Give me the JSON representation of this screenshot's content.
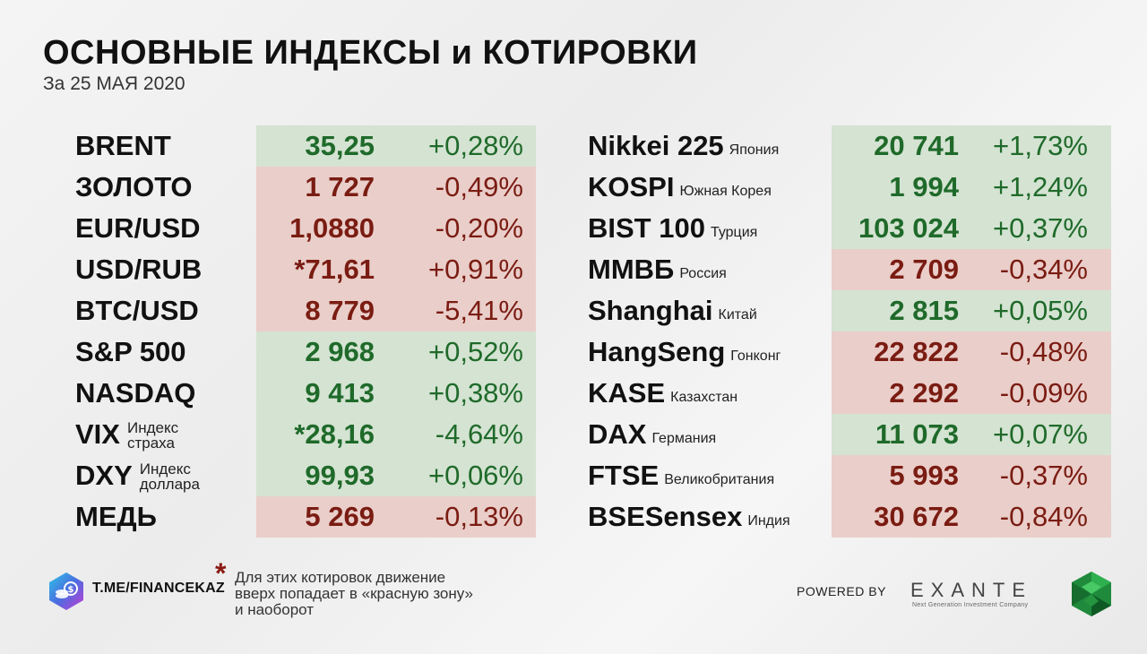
{
  "header": {
    "title": "ОСНОВНЫЕ ИНДЕКСЫ и КОТИРОВКИ",
    "date": "За 25 МАЯ 2020"
  },
  "left": [
    {
      "name": "BRENT",
      "desc": "",
      "value": "35,25",
      "change": "+0,28%",
      "trend": "pos"
    },
    {
      "name": "ЗОЛОТО",
      "desc": "",
      "value": "1 727",
      "change": "-0,49%",
      "trend": "neg"
    },
    {
      "name": "EUR/USD",
      "desc": "",
      "value": "1,0880",
      "change": "-0,20%",
      "trend": "neg"
    },
    {
      "name": "USD/RUB",
      "desc": "",
      "value": "*71,61",
      "change": "+0,91%",
      "trend": "neg"
    },
    {
      "name": "BTC/USD",
      "desc": "",
      "value": "8 779",
      "change": "-5,41%",
      "trend": "neg"
    },
    {
      "name": "S&P 500",
      "desc": "",
      "value": "2 968",
      "change": "+0,52%",
      "trend": "pos"
    },
    {
      "name": "NASDAQ",
      "desc": "",
      "value": "9 413",
      "change": "+0,38%",
      "trend": "pos"
    },
    {
      "name": "VIX",
      "desc": "",
      "desc_line1": "Индекс",
      "desc_line2": "страха",
      "value": "*28,16",
      "change": "-4,64%",
      "trend": "pos"
    },
    {
      "name": "DXY",
      "desc": "",
      "desc_line1": "Индекс",
      "desc_line2": "доллара",
      "value": "99,93",
      "change": "+0,06%",
      "trend": "pos"
    },
    {
      "name": "МЕДЬ",
      "desc": "",
      "value": "5 269",
      "change": "-0,13%",
      "trend": "neg"
    }
  ],
  "right": [
    {
      "name": "Nikkei 225",
      "desc": "Япония",
      "value": "20 741",
      "change": "+1,73%",
      "trend": "pos"
    },
    {
      "name": "KOSPI",
      "desc": "Южная Корея",
      "value": "1 994",
      "change": "+1,24%",
      "trend": "pos"
    },
    {
      "name": "BIST 100",
      "desc": "Турция",
      "value": "103 024",
      "change": "+0,37%",
      "trend": "pos"
    },
    {
      "name": "ММВБ",
      "desc": "Россия",
      "value": "2 709",
      "change": "-0,34%",
      "trend": "neg"
    },
    {
      "name": "Shanghai",
      "desc": "Китай",
      "value": "2 815",
      "change": "+0,05%",
      "trend": "pos"
    },
    {
      "name": "HangSeng",
      "desc": "Гонконг",
      "value": "22 822",
      "change": "-0,48%",
      "trend": "neg"
    },
    {
      "name": "KASE",
      "desc": "Казахстан",
      "value": "2 292",
      "change": "-0,09%",
      "trend": "neg"
    },
    {
      "name": "DAX",
      "desc": "Германия",
      "value": "11 073",
      "change": "+0,07%",
      "trend": "pos"
    },
    {
      "name": "FTSE",
      "desc": "Великобритания",
      "value": "5 993",
      "change": "-0,37%",
      "trend": "neg"
    },
    {
      "name": "BSESensex",
      "desc": "Индия",
      "value": "30 672",
      "change": "-0,84%",
      "trend": "neg"
    }
  ],
  "footer": {
    "channel": "T.ME/FINANCEKAZ",
    "asterisk": "*",
    "note_lines": [
      "Для этих котировок движение",
      "вверх попадает в «красную зону»",
      "и наоборот"
    ],
    "powered_by": "POWERED BY",
    "brand": "EXANTE",
    "brand_tagline": "Next Generation Investment Company",
    "channel_logo_icon": "coins-hexagon-icon",
    "brand_logo_icon": "green-crystal-hexagon-icon"
  },
  "colors": {
    "positive_bg": "#d4e3d2",
    "negative_bg": "#eaceca",
    "positive_text": "#1f6a2a",
    "negative_text": "#7a1c12"
  }
}
